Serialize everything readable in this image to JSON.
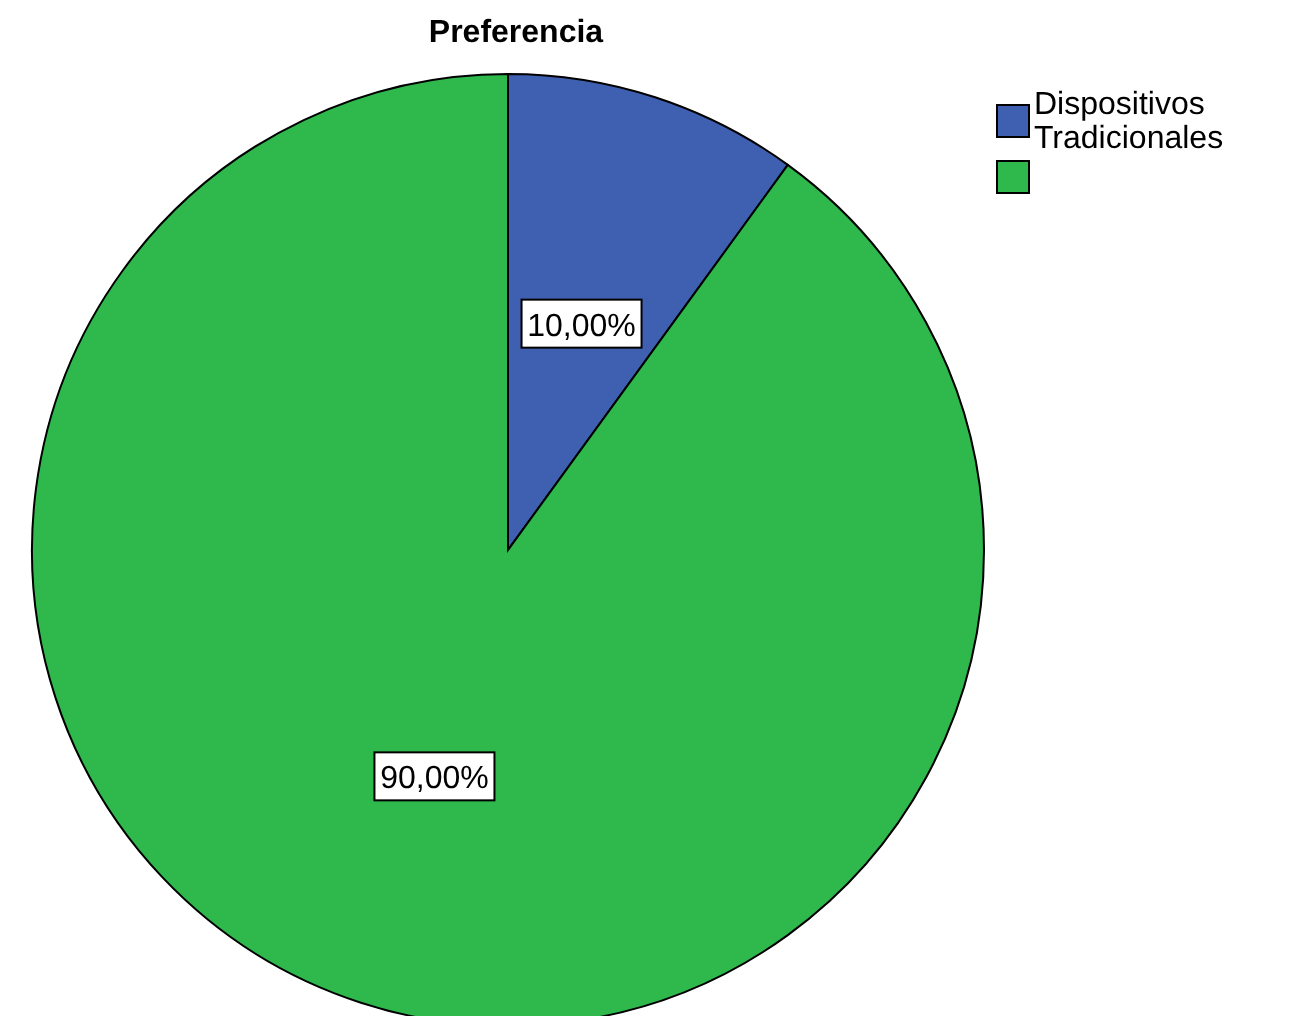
{
  "chart_data": {
    "type": "pie",
    "title": "Preferencia",
    "categories": [
      "Dispositivos Tradicionales",
      null
    ],
    "values": [
      10,
      90
    ],
    "colors": [
      "#3f5fb0",
      "#2fb84c"
    ],
    "value_labels": [
      "10,00%",
      "90,00%"
    ],
    "legend": "top right"
  }
}
